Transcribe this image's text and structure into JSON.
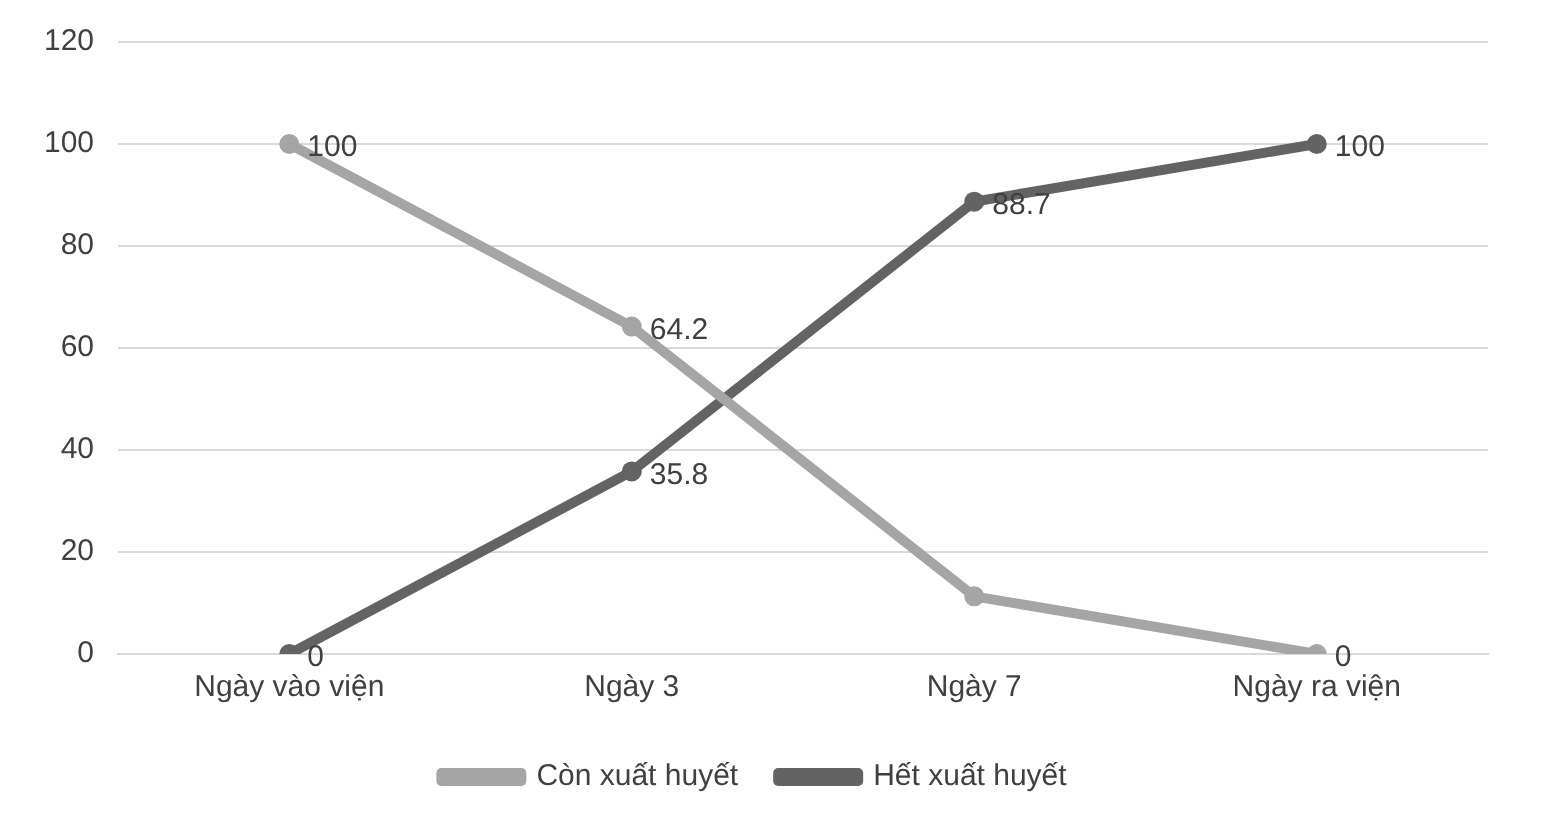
{
  "chart_data": {
    "type": "line",
    "categories": [
      "Ngày vào viện",
      "Ngày 3",
      "Ngày 7",
      "Ngày ra viện"
    ],
    "series": [
      {
        "name": "Còn xuất huyết",
        "color": "#a5a5a5",
        "values": [
          100,
          64.2,
          11.3,
          0
        ],
        "value_labels": [
          "100",
          "64.2",
          null,
          "0"
        ]
      },
      {
        "name": "Hết xuất huyết",
        "color": "#636363",
        "values": [
          0,
          35.8,
          88.7,
          100
        ],
        "value_labels": [
          "0",
          "35.8",
          "88.7",
          "100"
        ]
      }
    ],
    "ylim": [
      0,
      120
    ],
    "yticks": [
      0,
      20,
      40,
      60,
      80,
      100,
      120
    ],
    "grid": "y",
    "legend": "bottom",
    "marker": "circle",
    "line_style": "solid"
  }
}
